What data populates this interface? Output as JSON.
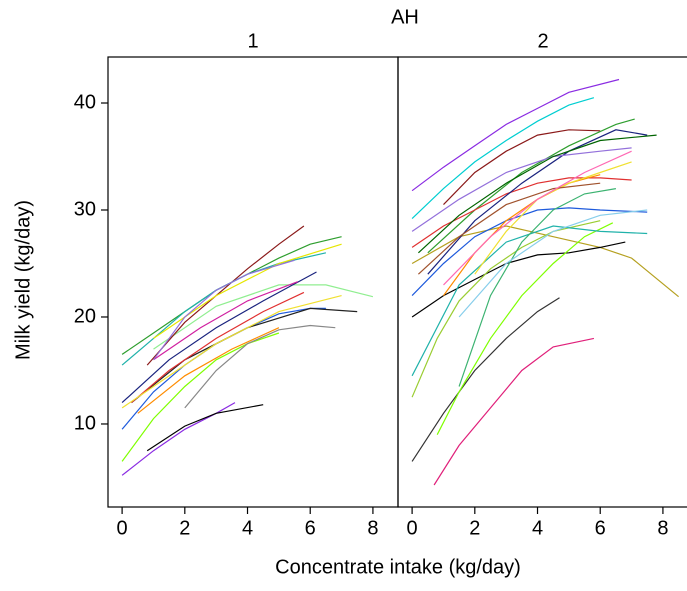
{
  "chart_data": {
    "type": "line",
    "title": "AH",
    "x_label": "Concentrate intake (kg/day)",
    "y_label": "Milk yield (kg/day)",
    "xlim": [
      -0.45,
      8.8
    ],
    "ylim": [
      2.24,
      44.3
    ],
    "xticks": [
      0,
      2,
      4,
      6,
      8
    ],
    "yticks": [
      10,
      20,
      30,
      40
    ],
    "panels": [
      {
        "label": "1",
        "series": [
          {
            "color": "#8a2be2",
            "x": [
              0,
              1,
              2,
              3,
              3.6
            ],
            "values": [
              5.2,
              7.5,
              9.5,
              11,
              12
            ]
          },
          {
            "color": "#000000",
            "x": [
              0.8,
              2,
              3,
              4.5
            ],
            "values": [
              7.5,
              9.8,
              11,
              11.8
            ]
          },
          {
            "color": "#7fff00",
            "x": [
              0,
              1,
              2,
              3,
              4,
              5
            ],
            "values": [
              6.5,
              10.5,
              13.5,
              16,
              17.5,
              18.5
            ]
          },
          {
            "color": "#888888",
            "x": [
              2,
              3,
              4,
              5,
              6,
              6.8
            ],
            "values": [
              11.5,
              15,
              17.5,
              18.8,
              19.2,
              19
            ]
          },
          {
            "color": "#1e5adc",
            "x": [
              0,
              1,
              2,
              3,
              4,
              5,
              6,
              6.5
            ],
            "values": [
              9.5,
              13,
              15.5,
              17.5,
              19,
              20.3,
              20.8,
              20.8
            ]
          },
          {
            "color": "#222222",
            "x": [
              0.3,
              2,
              4,
              6,
              7.5
            ],
            "values": [
              12,
              16,
              19,
              20.8,
              20.5
            ]
          },
          {
            "color": "#90ee90",
            "x": [
              1,
              3,
              5,
              6.5,
              8
            ],
            "values": [
              17,
              21,
              23,
              23,
              21.9
            ]
          },
          {
            "color": "#8b1a1a",
            "x": [
              0.8,
              2,
              3,
              4,
              5,
              5.8
            ],
            "values": [
              15.5,
              19.5,
              22,
              24.5,
              26.8,
              28.5
            ]
          },
          {
            "color": "#2e9e2e",
            "x": [
              0,
              1,
              2,
              3,
              4,
              5,
              6,
              7
            ],
            "values": [
              16.5,
              18.5,
              20.5,
              22.5,
              24,
              25.5,
              26.8,
              27.5
            ]
          },
          {
            "color": "#20b2aa",
            "x": [
              0,
              1,
              2,
              3,
              4,
              5,
              6.5
            ],
            "values": [
              15.5,
              18,
              20.5,
              22.5,
              24,
              25,
              26
            ]
          },
          {
            "color": "#e03030",
            "x": [
              0.3,
              1.5,
              3,
              4.5,
              5.8
            ],
            "values": [
              12,
              15,
              18,
              20.5,
              22.3
            ]
          },
          {
            "color": "#f0e030",
            "x": [
              0,
              1,
              2,
              3,
              4,
              5,
              7
            ],
            "values": [
              11.5,
              13.5,
              15.5,
              17.5,
              19,
              20.5,
              22
            ]
          },
          {
            "color": "#1a237e",
            "x": [
              0,
              1.5,
              3,
              4.5,
              6.2
            ],
            "values": [
              12,
              16,
              19,
              21.5,
              24.2
            ]
          },
          {
            "color": "#ff8c00",
            "x": [
              0.5,
              2,
              3.5,
              5
            ],
            "values": [
              11,
              14.5,
              17,
              19
            ]
          },
          {
            "color": "#d020a0",
            "x": [
              1,
              2.5,
              4,
              5.6
            ],
            "values": [
              16,
              19,
              21.5,
              23.3
            ]
          },
          {
            "color": "#e6e600",
            "x": [
              1,
              3,
              5,
              7
            ],
            "values": [
              18,
              22,
              25,
              26.8
            ]
          },
          {
            "color": "#9370db",
            "x": [
              1,
              2,
              3,
              4,
              5.5
            ],
            "values": [
              16,
              20,
              22.5,
              24,
              25.3
            ]
          }
        ]
      },
      {
        "label": "2",
        "series": [
          {
            "color": "#8a2be2",
            "x": [
              0,
              1,
              2,
              3,
              4,
              5,
              6.6
            ],
            "values": [
              31.8,
              34,
              36,
              38,
              39.5,
              41,
              42.2
            ]
          },
          {
            "color": "#00ced1",
            "x": [
              0,
              1,
              2,
              3,
              4,
              5,
              5.8
            ],
            "values": [
              29.2,
              32,
              34.5,
              36.5,
              38.3,
              39.8,
              40.5
            ]
          },
          {
            "color": "#8b1a1a",
            "x": [
              1,
              2,
              3,
              4,
              5,
              6
            ],
            "values": [
              30.5,
              33.5,
              35.5,
              37,
              37.5,
              37.4
            ]
          },
          {
            "color": "#2e9e2e",
            "x": [
              0.5,
              2,
              3.5,
              5,
              6.5,
              7.1
            ],
            "values": [
              26,
              30,
              33.5,
              36,
              38,
              38.5
            ]
          },
          {
            "color": "#b5a020",
            "x": [
              0,
              1.5,
              3,
              4.5,
              6,
              7,
              8.5
            ],
            "values": [
              25,
              27.5,
              28.5,
              27.5,
              26.5,
              25.5,
              21.9
            ]
          },
          {
            "color": "#e03030",
            "x": [
              0,
              1,
              2,
              3,
              4,
              5,
              6,
              7
            ],
            "values": [
              26.5,
              28.5,
              30,
              31.5,
              32.5,
              33,
              33,
              32.8
            ]
          },
          {
            "color": "#000000",
            "x": [
              0,
              1,
              2,
              3,
              4,
              5,
              6,
              6.8
            ],
            "values": [
              20,
              22,
              23.5,
              25,
              25.8,
              26,
              26.5,
              27
            ]
          },
          {
            "color": "#333333",
            "x": [
              0,
              1,
              2,
              3,
              4,
              4.7
            ],
            "values": [
              6.5,
              11,
              15,
              18,
              20.5,
              21.8
            ]
          },
          {
            "color": "#e0207a",
            "x": [
              0.7,
              1.5,
              2.5,
              3.5,
              4.5,
              5.8
            ],
            "values": [
              4.3,
              8,
              11.5,
              15,
              17.2,
              18
            ]
          },
          {
            "color": "#7fff00",
            "x": [
              0.8,
              1.5,
              2.5,
              3.5,
              4.5,
              5.5,
              6.4
            ],
            "values": [
              9,
              13,
              18,
              22,
              25,
              27.5,
              28.8
            ]
          },
          {
            "color": "#9acd32",
            "x": [
              0,
              0.8,
              1.5,
              2.5,
              3.5,
              4.5,
              6
            ],
            "values": [
              12.5,
              18,
              21.5,
              24.5,
              26.5,
              28,
              29
            ]
          },
          {
            "color": "#1e5adc",
            "x": [
              0,
              1,
              2,
              3,
              4,
              5,
              6,
              7.5
            ],
            "values": [
              22,
              25,
              27.5,
              29,
              30,
              30.2,
              30,
              29.8
            ]
          },
          {
            "color": "#20b2aa",
            "x": [
              0,
              1.5,
              3,
              4.5,
              6,
              7.5
            ],
            "values": [
              14.5,
              23,
              27,
              28.5,
              28,
              27.8
            ]
          },
          {
            "color": "#ff8c00",
            "x": [
              1,
              2,
              3,
              4,
              5,
              6
            ],
            "values": [
              22,
              26,
              29,
              31,
              32.5,
              33.3
            ]
          },
          {
            "color": "#1a237e",
            "x": [
              0.5,
              2,
              3.5,
              5,
              6.5,
              7.5
            ],
            "values": [
              24,
              29,
              32.5,
              35.5,
              37.5,
              37
            ]
          },
          {
            "color": "#9370db",
            "x": [
              0,
              1.5,
              3,
              4.5,
              6,
              7
            ],
            "values": [
              28,
              31,
              33.5,
              35,
              35.5,
              35.8
            ]
          },
          {
            "color": "#f0e030",
            "x": [
              2,
              3,
              4,
              5,
              6,
              7
            ],
            "values": [
              24,
              28,
              31,
              32.5,
              33.5,
              34.5
            ]
          },
          {
            "color": "#a0522d",
            "x": [
              0.2,
              1.5,
              3,
              4.5,
              6
            ],
            "values": [
              24,
              27.5,
              30.5,
              32,
              32.5
            ]
          },
          {
            "color": "#3cb371",
            "x": [
              1.5,
              2.5,
              3.5,
              4.5,
              5.5,
              6.5
            ],
            "values": [
              13.5,
              22,
              27,
              30,
              31.5,
              32
            ]
          },
          {
            "color": "#ff69b4",
            "x": [
              1,
              2.5,
              4,
              5.5,
              7
            ],
            "values": [
              23,
              27.5,
              31,
              33.5,
              35.5
            ]
          },
          {
            "color": "#006400",
            "x": [
              0.2,
              1.5,
              3,
              4.5,
              6,
              7.8
            ],
            "values": [
              26,
              29.5,
              32.5,
              35,
              36.5,
              37
            ]
          },
          {
            "color": "#87ceeb",
            "x": [
              1.5,
              3,
              4.5,
              6,
              7.5
            ],
            "values": [
              20,
              25,
              28,
              29.5,
              30
            ]
          }
        ]
      }
    ]
  }
}
